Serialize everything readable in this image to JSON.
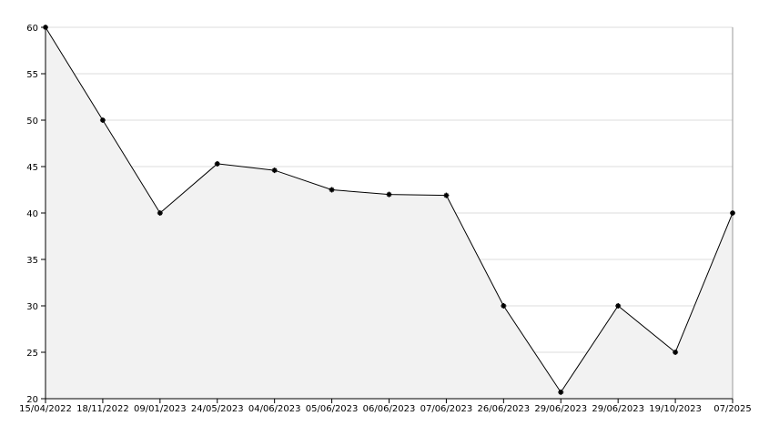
{
  "chart_data": {
    "type": "area",
    "categories": [
      "15/04/2022",
      "18/11/2022",
      "09/01/2023",
      "24/05/2023",
      "04/06/2023",
      "05/06/2023",
      "06/06/2023",
      "07/06/2023",
      "26/06/2023",
      "29/06/2023",
      "29/06/2023",
      "19/10/2023",
      "07/2025"
    ],
    "values": [
      60,
      50,
      40,
      45.3,
      44.6,
      42.5,
      42,
      41.9,
      30,
      20.7,
      30,
      25,
      40
    ],
    "color": "#000000",
    "fill": "#f2f2f2",
    "ylim": [
      20,
      60
    ],
    "yticks": [
      20,
      25,
      30,
      35,
      40,
      45,
      50,
      55,
      60
    ],
    "grid": true
  }
}
